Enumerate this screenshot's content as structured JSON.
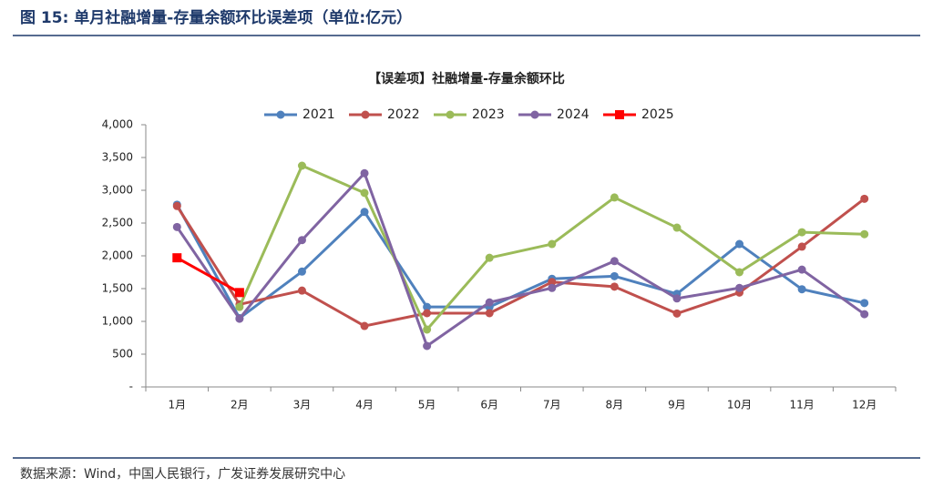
{
  "figure_title": "图 15: 单月社融增量-存量余额环比误差项（单位:亿元）",
  "source": "数据来源：Wind，中国人民银行，广发证券发展研究中心",
  "chart_data": {
    "type": "line",
    "title": "【误差项】社融增量-存量余额环比",
    "categories": [
      "1月",
      "2月",
      "3月",
      "4月",
      "5月",
      "6月",
      "7月",
      "8月",
      "9月",
      "10月",
      "11月",
      "12月"
    ],
    "series": [
      {
        "name": "2021",
        "color": "#4f81bd",
        "marker": "circle",
        "values": [
          2780,
          1050,
          1760,
          2670,
          1220,
          1220,
          1650,
          1690,
          1420,
          2180,
          1490,
          1280
        ]
      },
      {
        "name": "2022",
        "color": "#c0504d",
        "marker": "circle",
        "values": [
          2760,
          1260,
          1470,
          930,
          1125,
          1125,
          1600,
          1530,
          1120,
          1440,
          2140,
          2870
        ]
      },
      {
        "name": "2023",
        "color": "#9bbb59",
        "marker": "circle",
        "values": [
          null,
          1220,
          3375,
          2960,
          875,
          1970,
          2180,
          2890,
          2430,
          1750,
          2360,
          2330
        ]
      },
      {
        "name": "2024",
        "color": "#8064a2",
        "marker": "circle",
        "values": [
          2440,
          1040,
          2240,
          3260,
          625,
          1290,
          1510,
          1920,
          1350,
          1510,
          1790,
          1110
        ]
      },
      {
        "name": "2025",
        "color": "#ff0000",
        "marker": "square",
        "values": [
          1970,
          1440,
          null,
          null,
          null,
          null,
          null,
          null,
          null,
          null,
          null,
          null
        ]
      }
    ],
    "ylim": [
      0,
      4000
    ],
    "yticks": [
      {
        "value": 0,
        "label": "-"
      },
      500,
      {
        "value": 1000,
        "label": "1,000"
      },
      {
        "value": 1500,
        "label": "1,500"
      },
      {
        "value": 2000,
        "label": "2,000"
      },
      {
        "value": 2500,
        "label": "2,500"
      },
      {
        "value": 3000,
        "label": "3,000"
      },
      {
        "value": 3500,
        "label": "3,500"
      },
      {
        "value": 4000,
        "label": "4,000"
      }
    ],
    "legend": "top"
  }
}
